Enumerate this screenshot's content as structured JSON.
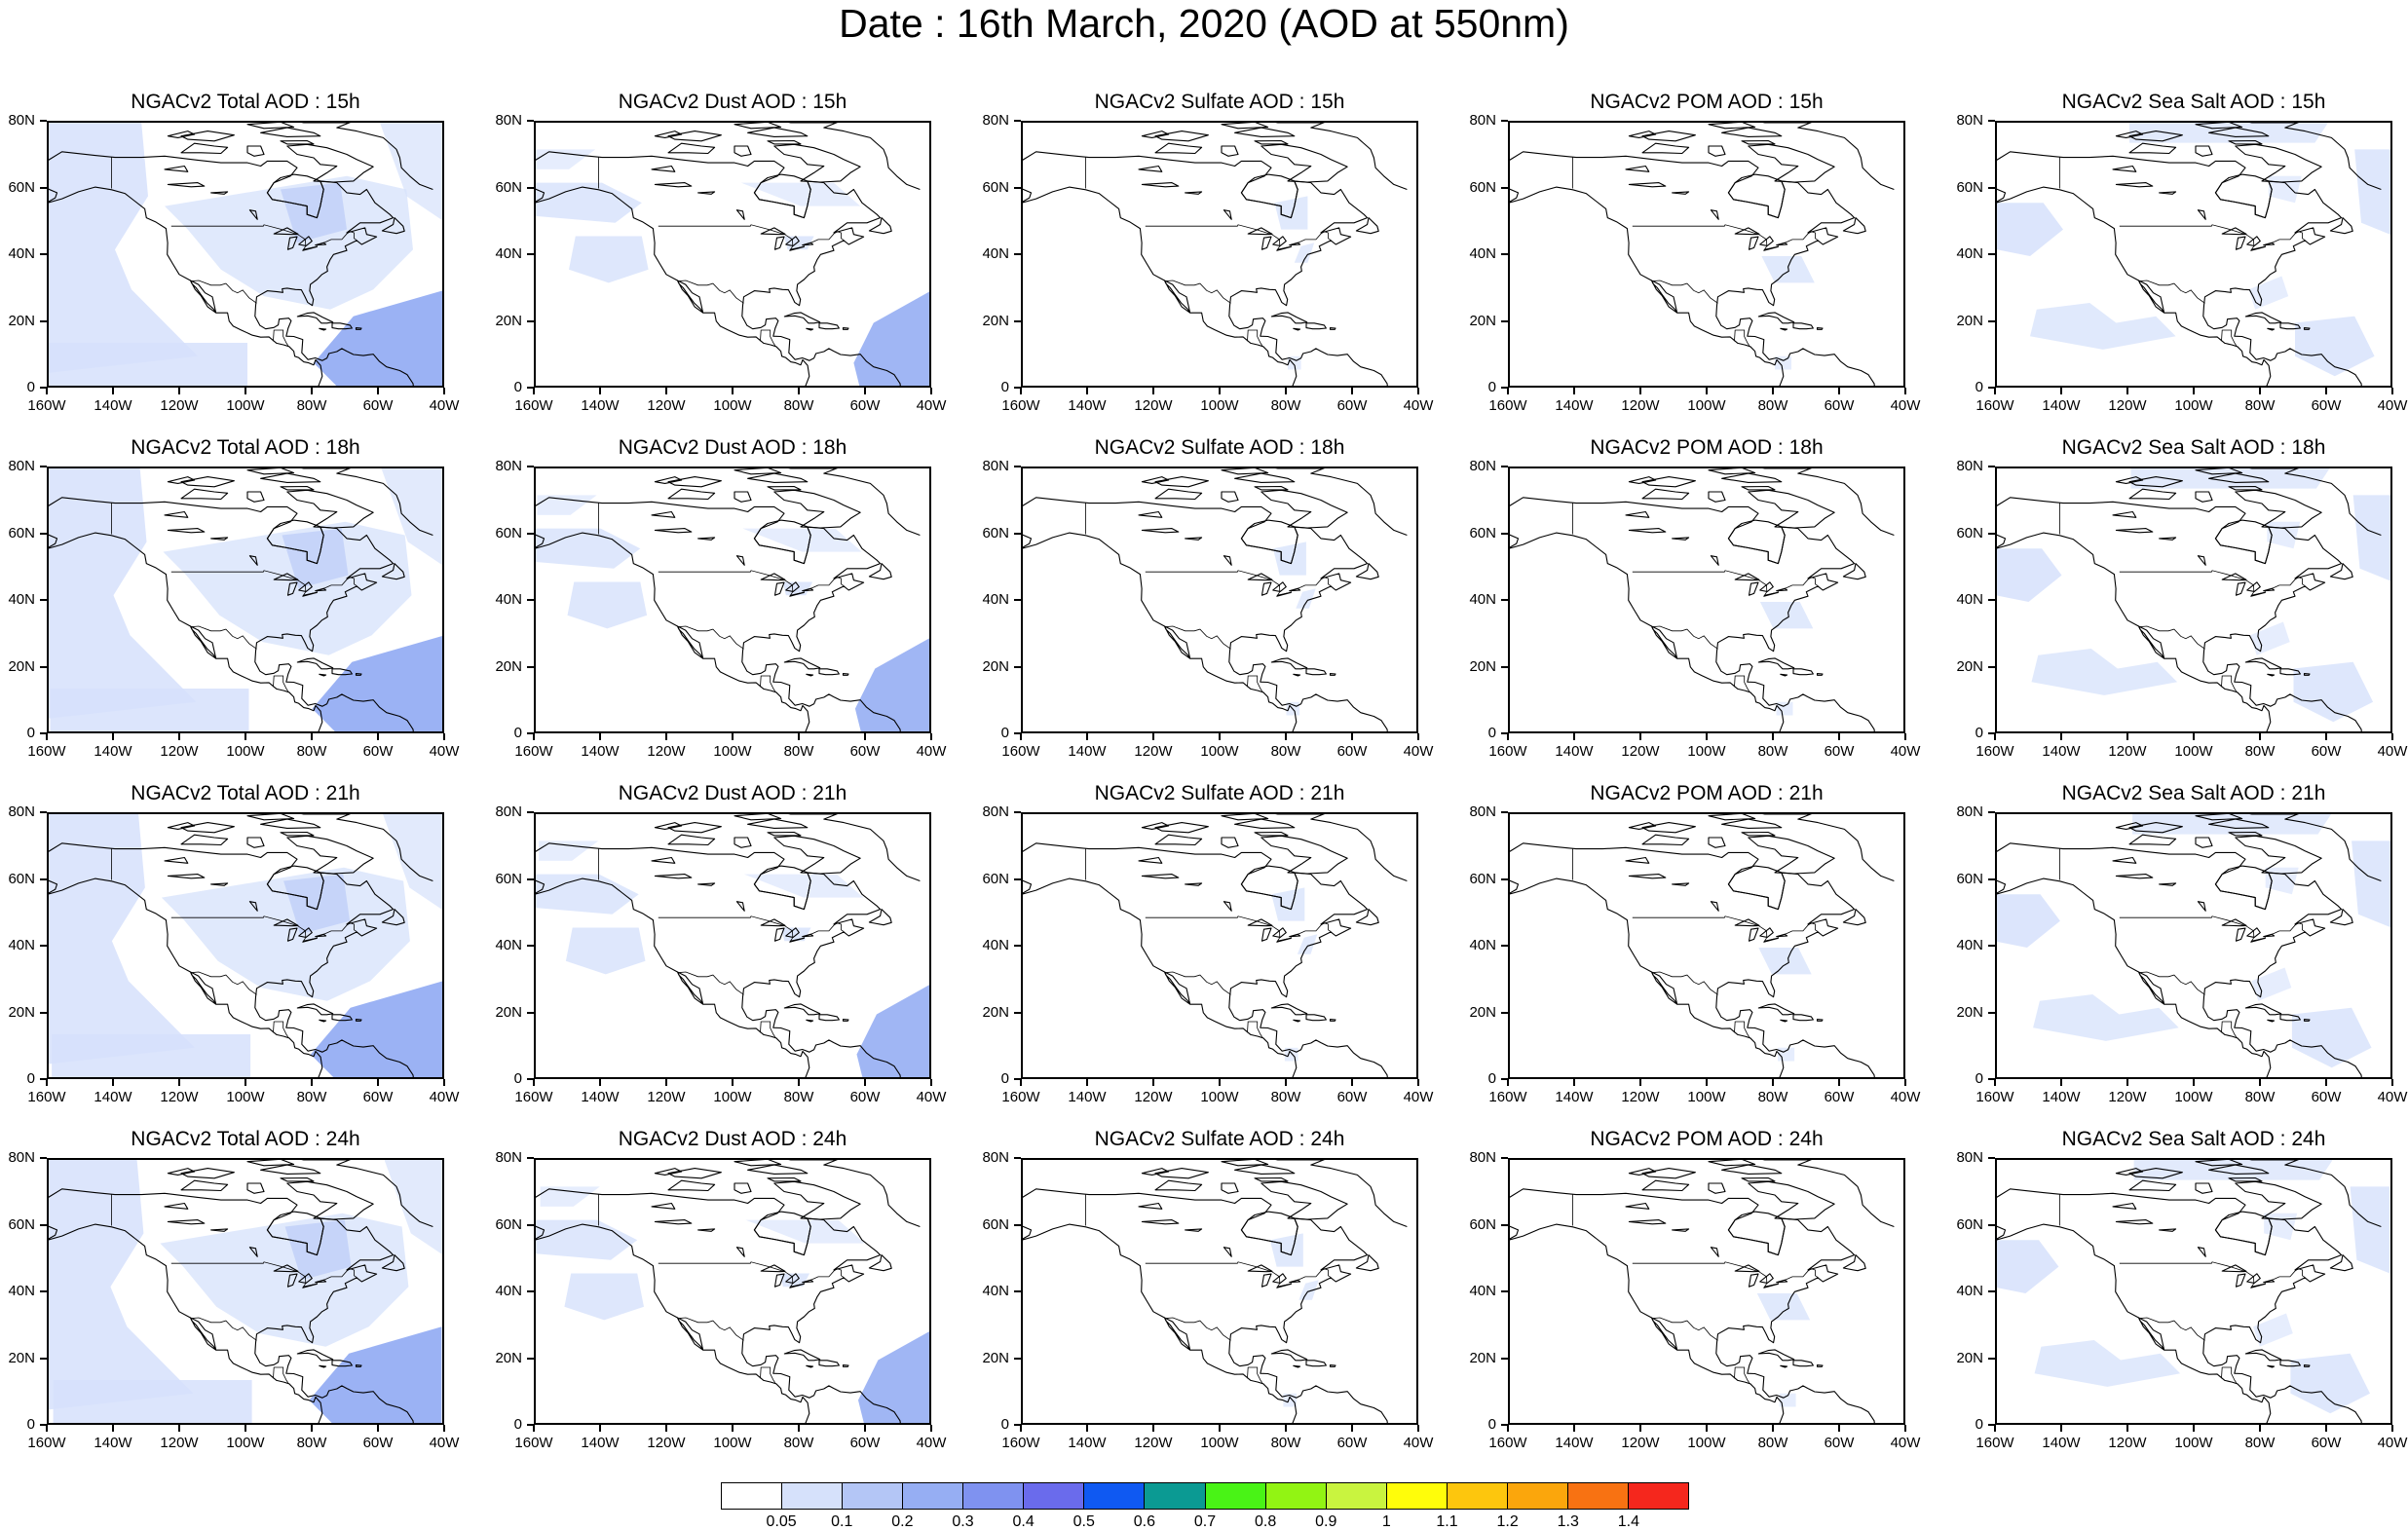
{
  "title": "Date : 16th March, 2020 (AOD at 550nm)",
  "axes": {
    "lat_labels": [
      "80N",
      "60N",
      "40N",
      "20N",
      "0"
    ],
    "lon_labels": [
      "160W",
      "140W",
      "120W",
      "100W",
      "80W",
      "60W",
      "40W"
    ],
    "lat_range": [
      0,
      80
    ],
    "lon_range": [
      -160,
      -40
    ]
  },
  "panels": [
    [
      {
        "title": "NGACv2 Total AOD : 15h",
        "species": "total",
        "hour": "15h"
      },
      {
        "title": "NGACv2 Dust AOD : 15h",
        "species": "dust",
        "hour": "15h"
      },
      {
        "title": "NGACv2 Sulfate AOD : 15h",
        "species": "sulfate",
        "hour": "15h"
      },
      {
        "title": "NGACv2 POM AOD : 15h",
        "species": "pom",
        "hour": "15h"
      },
      {
        "title": "NGACv2 Sea Salt AOD : 15h",
        "species": "seasalt",
        "hour": "15h"
      }
    ],
    [
      {
        "title": "NGACv2 Total AOD : 18h",
        "species": "total",
        "hour": "18h"
      },
      {
        "title": "NGACv2 Dust AOD : 18h",
        "species": "dust",
        "hour": "18h"
      },
      {
        "title": "NGACv2 Sulfate AOD : 18h",
        "species": "sulfate",
        "hour": "18h"
      },
      {
        "title": "NGACv2 POM AOD : 18h",
        "species": "pom",
        "hour": "18h"
      },
      {
        "title": "NGACv2 Sea Salt AOD : 18h",
        "species": "seasalt",
        "hour": "18h"
      }
    ],
    [
      {
        "title": "NGACv2 Total AOD : 21h",
        "species": "total",
        "hour": "21h"
      },
      {
        "title": "NGACv2 Dust AOD : 21h",
        "species": "dust",
        "hour": "21h"
      },
      {
        "title": "NGACv2 Sulfate AOD : 21h",
        "species": "sulfate",
        "hour": "21h"
      },
      {
        "title": "NGACv2 POM AOD : 21h",
        "species": "pom",
        "hour": "21h"
      },
      {
        "title": "NGACv2 Sea Salt AOD : 21h",
        "species": "seasalt",
        "hour": "21h"
      }
    ],
    [
      {
        "title": "NGACv2 Total AOD : 24h",
        "species": "total",
        "hour": "24h"
      },
      {
        "title": "NGACv2 Dust AOD : 24h",
        "species": "dust",
        "hour": "24h"
      },
      {
        "title": "NGACv2 Sulfate AOD : 24h",
        "species": "sulfate",
        "hour": "24h"
      },
      {
        "title": "NGACv2 POM AOD : 24h",
        "species": "pom",
        "hour": "24h"
      },
      {
        "title": "NGACv2 Sea Salt  AOD : 24h",
        "species": "seasalt",
        "hour": "24h"
      }
    ]
  ],
  "colorbar": {
    "labels": [
      "0.05",
      "0.1",
      "0.2",
      "0.3",
      "0.4",
      "0.5",
      "0.6",
      "0.7",
      "0.8",
      "0.9",
      "1",
      "1.1",
      "1.2",
      "1.3",
      "1.4"
    ],
    "colors": [
      "#ffffff",
      "#d6e1fb",
      "#b4c6f6",
      "#96aef3",
      "#7f92f0",
      "#6a6bec",
      "#0f59f2",
      "#0b9a93",
      "#49f316",
      "#92f413",
      "#c9f43f",
      "#fffd0a",
      "#fdc60d",
      "#fba60c",
      "#f87212",
      "#f5271d"
    ]
  },
  "colors": {
    "light_blue": "#d6e1fb",
    "mid_blue": "#b4c6f6",
    "deep_blue": "#96aef3"
  }
}
